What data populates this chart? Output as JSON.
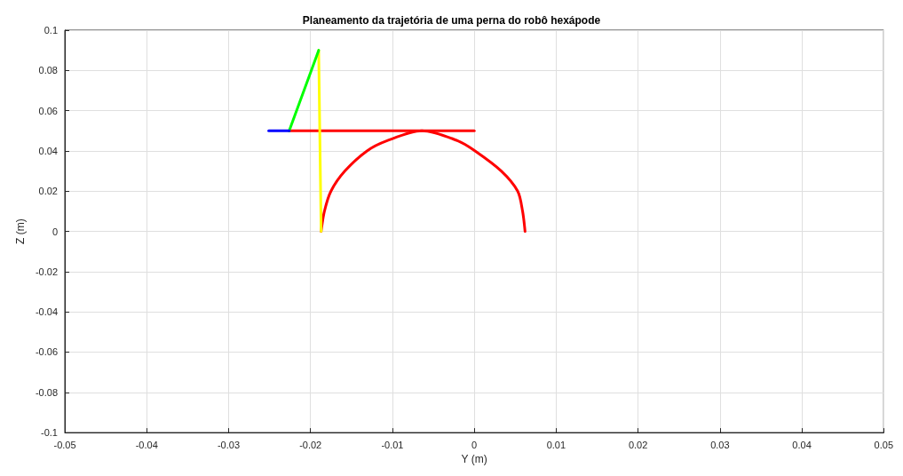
{
  "chart_data": {
    "type": "line",
    "title": "Planeamento da trajetória de uma perna do robô hexápode",
    "xlabel": "Y (m)",
    "ylabel": "Z (m)",
    "xlim": [
      -0.05,
      0.05
    ],
    "xticks": [
      -0.05,
      -0.04,
      -0.03,
      -0.02,
      -0.01,
      0,
      0.01,
      0.02,
      0.03,
      0.04,
      0.05
    ],
    "ylim": [
      -0.1,
      0.1
    ],
    "yticks": [
      -0.1,
      -0.08,
      -0.06,
      -0.04,
      -0.02,
      0,
      0.02,
      0.04,
      0.06,
      0.08,
      0.1
    ],
    "grid": true,
    "marker": "none",
    "line_style": "solid",
    "series": [
      {
        "color": "#ff0000",
        "x": [
          -0.0187,
          -0.0183,
          -0.0175,
          -0.0158,
          -0.0131,
          -0.0107,
          -0.0064,
          -0.002,
          0.0001,
          0.0033,
          0.0053,
          0.0059,
          0.0062
        ],
        "values": [
          0,
          0.01,
          0.02,
          0.03,
          0.04,
          0.045,
          0.05,
          0.045,
          0.04,
          0.03,
          0.02,
          0.01,
          0
        ]
      },
      {
        "color": "#ff0000",
        "x": [
          -0.0226,
          0
        ],
        "values": [
          0.05,
          0.05
        ]
      },
      {
        "color": "#ffff00",
        "x": [
          -0.019,
          -0.0187
        ],
        "values": [
          0.09,
          0
        ]
      },
      {
        "color": "#00ff00",
        "x": [
          -0.0226,
          -0.019
        ],
        "values": [
          0.05,
          0.09
        ]
      },
      {
        "color": "#0000ff",
        "x": [
          -0.0251,
          -0.0226
        ],
        "values": [
          0.05,
          0.05
        ]
      }
    ]
  }
}
